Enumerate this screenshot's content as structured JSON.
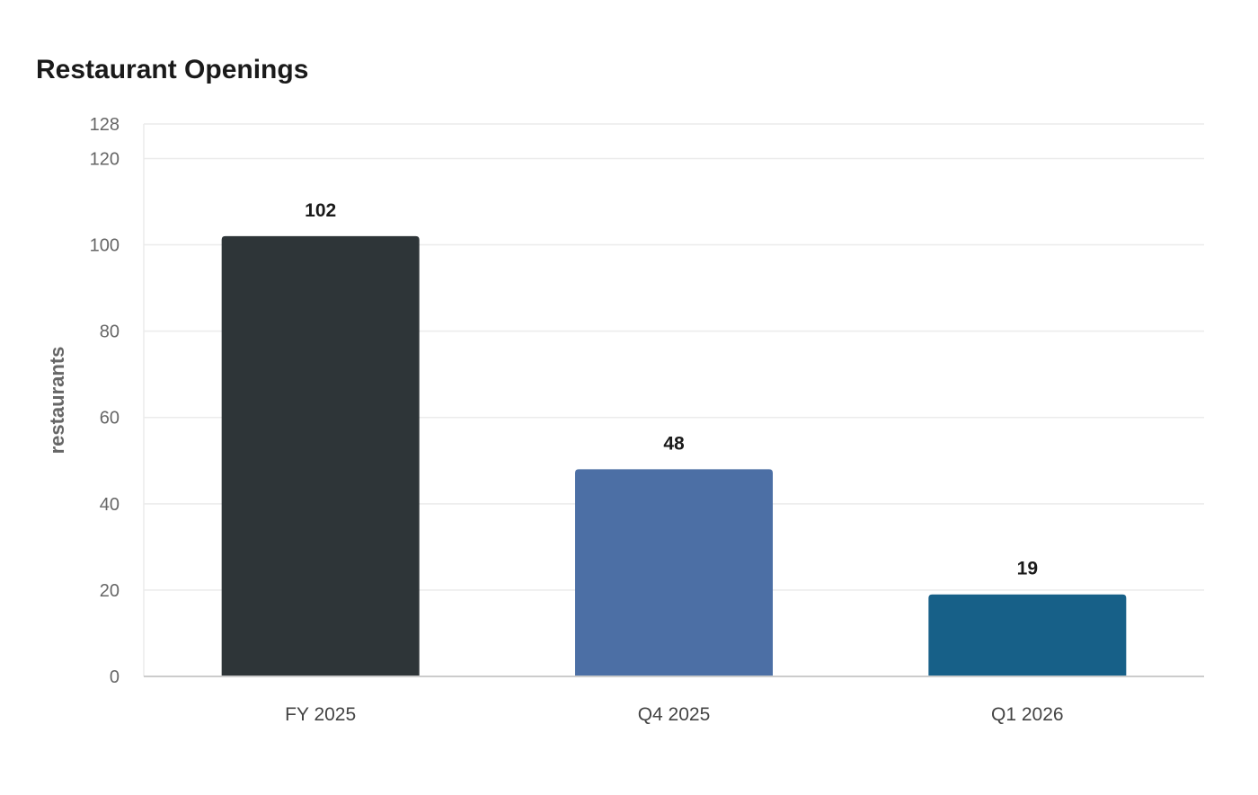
{
  "chart_data": {
    "type": "bar",
    "title": "Restaurant Openings",
    "xlabel": "",
    "ylabel": "restaurants",
    "categories": [
      "FY 2025",
      "Q4 2025",
      "Q1 2026"
    ],
    "values": [
      102,
      48,
      19
    ],
    "colors": [
      "#2e3538",
      "#4c6fa5",
      "#176088"
    ],
    "ylim": [
      0,
      128
    ],
    "yticks": [
      0,
      20,
      40,
      60,
      80,
      100,
      120,
      128
    ],
    "grid": true,
    "legend": "none"
  },
  "colors": {
    "grid": "#ebebeb",
    "axis": "#cccccc",
    "tick_text": "#666666",
    "title_text": "#1a1a1a"
  }
}
